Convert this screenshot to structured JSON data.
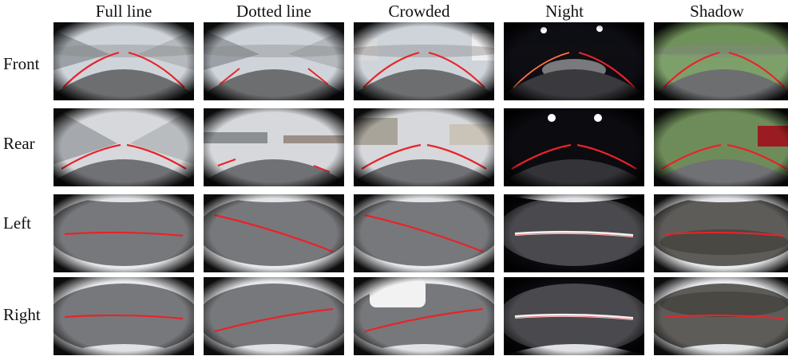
{
  "columns": [
    "Full line",
    "Dotted line",
    "Crowded",
    "Night",
    "Shadow"
  ],
  "rows": [
    "Front",
    "Rear",
    "Left",
    "Right"
  ],
  "colors": {
    "lane_marking": "#e8232a",
    "road": "#6e6e70",
    "night_sky": "#0b0b10",
    "vignette": "#0a0a0a"
  }
}
